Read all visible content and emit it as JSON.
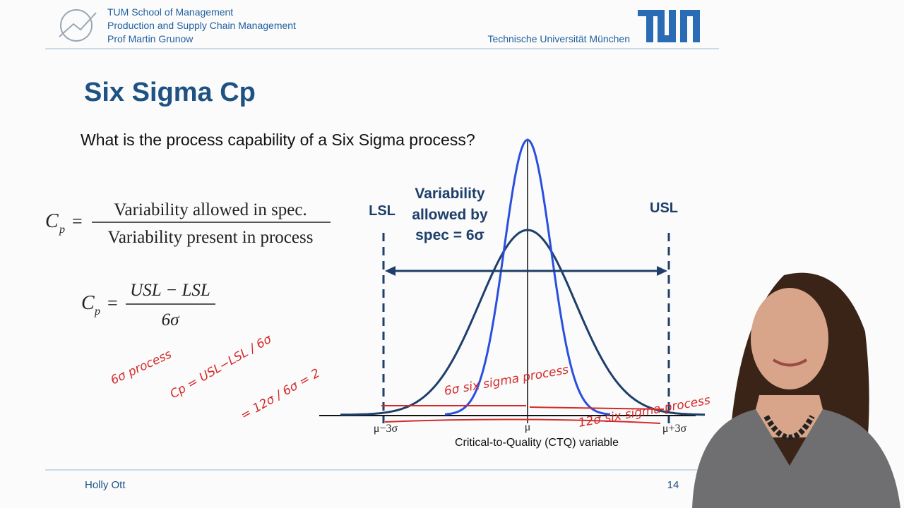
{
  "header": {
    "lines": [
      "TUM School of Management",
      "Production and Supply Chain Management",
      "Prof Martin Grunow"
    ],
    "university": "Technische Universität München"
  },
  "title": "Six Sigma Cp",
  "question": "What is the process capability of a Six Sigma process?",
  "formula1": {
    "symbol": "C",
    "subscript": "p",
    "equals": "=",
    "numerator": "Variability allowed in spec.",
    "denominator": "Variability present in process"
  },
  "formula2": {
    "symbol": "C",
    "subscript": "p",
    "equals": "=",
    "numerator": "USL − LSL",
    "denominator": "6σ"
  },
  "diagram": {
    "lsl": "LSL",
    "usl": "USL",
    "spec_label": [
      "Variability",
      "allowed by",
      "spec = 6σ"
    ],
    "axis_labels": [
      "μ−3σ",
      "μ",
      "μ+3σ"
    ],
    "x_label": "Critical-to-Quality (CTQ) variable"
  },
  "annotations": [
    "6σ process",
    "Cp = USL−LSL / 6σ",
    "= 12σ / 6σ = 2",
    "6σ six sigma process",
    "12σ six sigma process"
  ],
  "footer": {
    "presenter": "Holly Ott",
    "page": "14"
  }
}
